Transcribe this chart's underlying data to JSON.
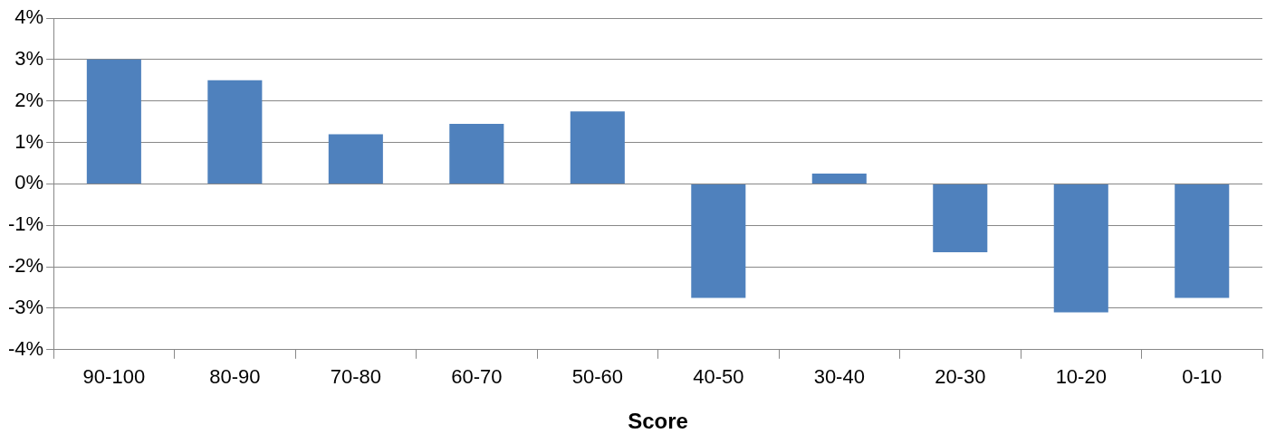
{
  "chart_data": {
    "type": "bar",
    "xlabel": "Score",
    "categories": [
      "90-100",
      "80-90",
      "70-80",
      "60-70",
      "50-60",
      "40-50",
      "30-40",
      "20-30",
      "10-20",
      "0-10"
    ],
    "values": [
      3.0,
      2.5,
      1.2,
      1.45,
      1.75,
      -2.75,
      0.25,
      -1.65,
      -3.1,
      -2.75
    ],
    "color": "#4f81bd",
    "ylim": [
      -4,
      4
    ],
    "yticks": [
      {
        "value": -4,
        "label": "-4%"
      },
      {
        "value": -3,
        "label": "-3%"
      },
      {
        "value": -2,
        "label": "-2%"
      },
      {
        "value": -1,
        "label": "-1%"
      },
      {
        "value": 0,
        "label": "0%"
      },
      {
        "value": 1,
        "label": "1%"
      },
      {
        "value": 2,
        "label": "2%"
      },
      {
        "value": 3,
        "label": "3%"
      },
      {
        "value": 4,
        "label": "4%"
      }
    ],
    "grid": "y",
    "legend": false
  }
}
